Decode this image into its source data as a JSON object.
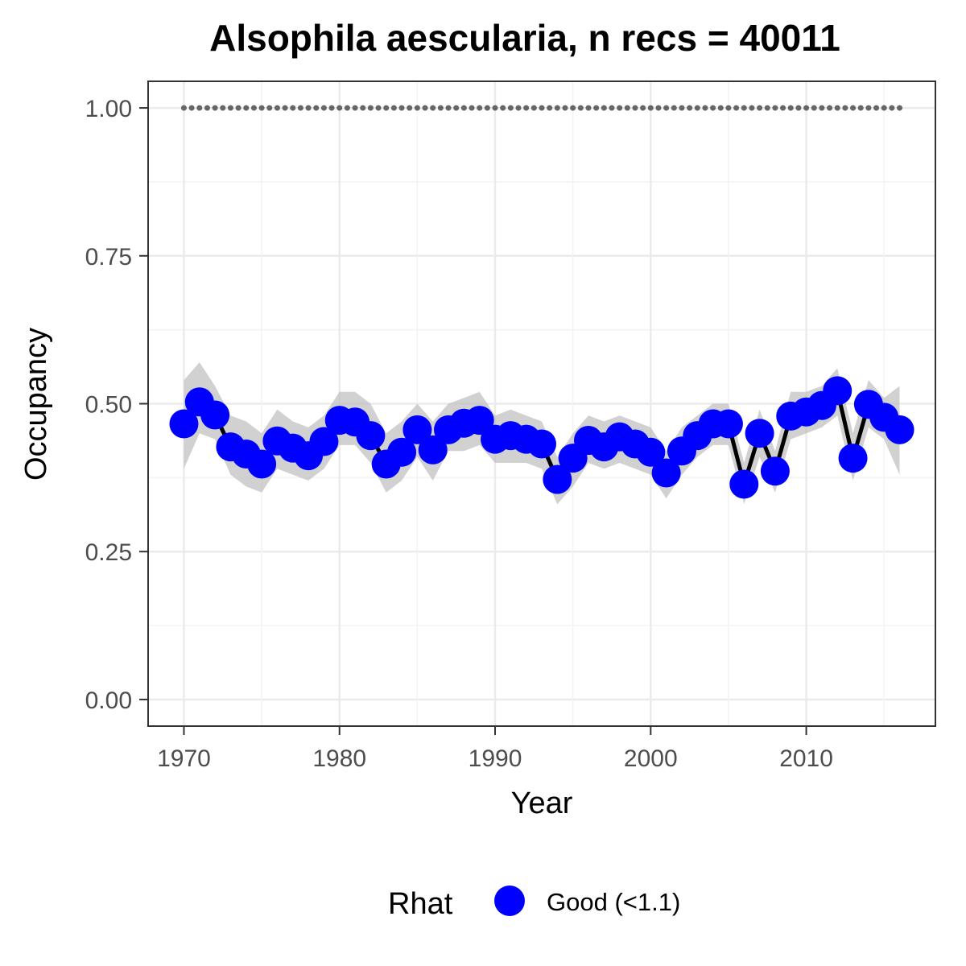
{
  "chart_data": {
    "type": "line",
    "title": "Alsophila aescularia, n recs = 40011",
    "xlabel": "Year",
    "ylabel": "Occupancy",
    "xlim": [
      1968.1,
      1917.9
    ],
    "ylim": [
      -0.045,
      1.045
    ],
    "x_ticks": [
      1970,
      1980,
      1990,
      2000,
      2010
    ],
    "x_tick_labels": [
      "1970",
      "1980",
      "1990",
      "2000",
      "2010"
    ],
    "y_ticks": [
      0.0,
      0.25,
      0.5,
      0.75,
      1.0
    ],
    "y_tick_labels": [
      "0.00",
      "0.25",
      "0.50",
      "0.75",
      "1.00"
    ],
    "grid": true,
    "x": [
      1970,
      1971,
      1972,
      1973,
      1974,
      1975,
      1976,
      1977,
      1978,
      1979,
      1980,
      1981,
      1982,
      1983,
      1984,
      1985,
      1986,
      1987,
      1988,
      1989,
      1990,
      1991,
      1992,
      1993,
      1994,
      1995,
      1996,
      1997,
      1998,
      1999,
      2000,
      2001,
      2002,
      2003,
      2004,
      2005,
      2006,
      2007,
      2008,
      2009,
      2010,
      2011,
      2012,
      2013,
      2014,
      2015,
      2016
    ],
    "series": [
      {
        "name": "Good (<1.1)",
        "color": "#0000ff",
        "line_color": "#000000",
        "values": [
          0.466,
          0.503,
          0.481,
          0.427,
          0.415,
          0.398,
          0.437,
          0.425,
          0.412,
          0.436,
          0.472,
          0.469,
          0.446,
          0.398,
          0.418,
          0.456,
          0.422,
          0.456,
          0.467,
          0.472,
          0.44,
          0.446,
          0.44,
          0.432,
          0.372,
          0.408,
          0.438,
          0.427,
          0.444,
          0.432,
          0.418,
          0.383,
          0.42,
          0.446,
          0.466,
          0.466,
          0.364,
          0.45,
          0.386,
          0.479,
          0.486,
          0.497,
          0.522,
          0.408,
          0.499,
          0.477,
          0.456
        ],
        "lower": [
          0.39,
          0.45,
          0.44,
          0.38,
          0.36,
          0.35,
          0.39,
          0.38,
          0.37,
          0.39,
          0.43,
          0.43,
          0.4,
          0.35,
          0.37,
          0.41,
          0.37,
          0.42,
          0.42,
          0.43,
          0.4,
          0.4,
          0.4,
          0.39,
          0.33,
          0.36,
          0.4,
          0.39,
          0.4,
          0.39,
          0.38,
          0.34,
          0.38,
          0.41,
          0.43,
          0.43,
          0.33,
          0.41,
          0.35,
          0.44,
          0.45,
          0.46,
          0.48,
          0.37,
          0.46,
          0.44,
          0.38
        ],
        "upper": [
          0.54,
          0.57,
          0.53,
          0.48,
          0.47,
          0.45,
          0.49,
          0.47,
          0.46,
          0.48,
          0.52,
          0.52,
          0.5,
          0.45,
          0.47,
          0.5,
          0.47,
          0.5,
          0.51,
          0.52,
          0.48,
          0.49,
          0.48,
          0.47,
          0.41,
          0.45,
          0.48,
          0.47,
          0.48,
          0.47,
          0.46,
          0.42,
          0.46,
          0.48,
          0.5,
          0.5,
          0.4,
          0.49,
          0.42,
          0.52,
          0.52,
          0.53,
          0.56,
          0.45,
          0.54,
          0.51,
          0.53
        ]
      }
    ],
    "reference_line": {
      "y": 1.0,
      "color": "#666666",
      "style": "dotted"
    },
    "band_color": "#bdbdbd",
    "legend": {
      "title": "Rhat",
      "placement": "bottom",
      "entries": [
        "Good (<1.1)"
      ]
    }
  }
}
